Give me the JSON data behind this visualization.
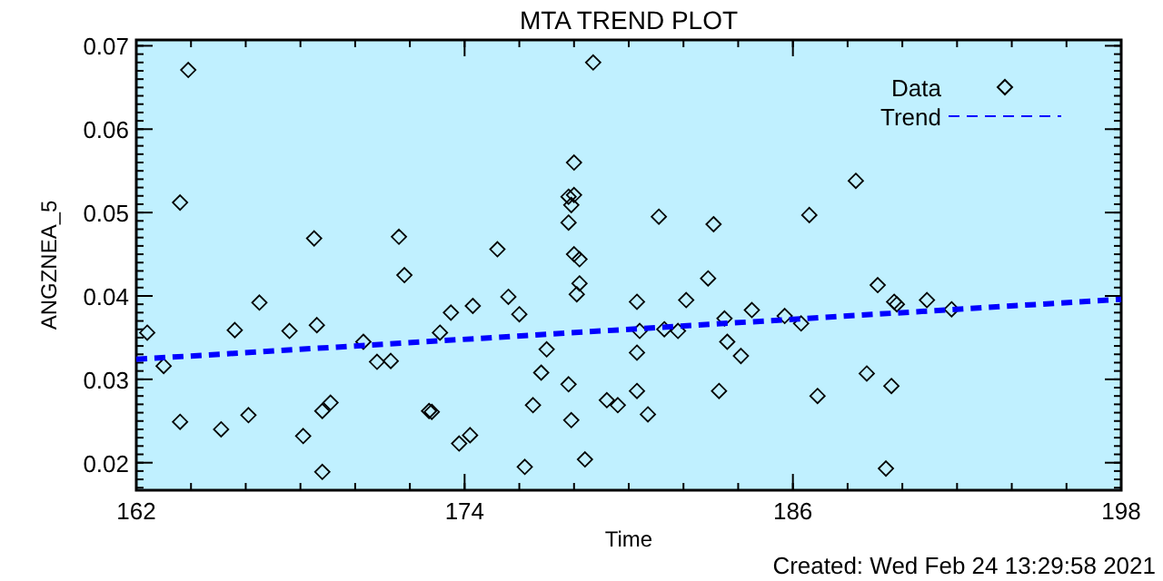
{
  "chart_data": {
    "type": "scatter",
    "title": "MTA TREND PLOT",
    "xlabel": "Time",
    "ylabel": "ANGZNEA_5",
    "annotations": [
      "Created: Wed Feb 24 13:29:58 2021"
    ],
    "xlim": [
      162,
      198
    ],
    "xticks": [
      162,
      174,
      186,
      198
    ],
    "ylim": [
      0.0167,
      0.0707
    ],
    "yticks": [
      {
        "value": 0.02,
        "label": "0.02"
      },
      {
        "value": 0.03,
        "label": "0.03"
      },
      {
        "value": 0.04,
        "label": "0.04"
      },
      {
        "value": 0.05,
        "label": "0.05"
      },
      {
        "value": 0.06,
        "label": "0.06"
      },
      {
        "value": 0.07,
        "label": "0.07"
      }
    ],
    "grid": false,
    "legend": "top right",
    "series": [
      {
        "name": "Data",
        "marker": "diamond",
        "color": "#000000",
        "x": [
          162.4,
          163.9,
          163.6,
          163.0,
          163.6,
          165.1,
          165.6,
          166.1,
          166.5,
          167.6,
          168.1,
          168.5,
          168.6,
          168.8,
          169.1,
          168.8,
          170.3,
          170.8,
          171.3,
          171.6,
          171.8,
          172.7,
          172.8,
          173.1,
          173.5,
          173.8,
          174.2,
          174.3,
          178.7,
          178.0,
          177.8,
          178.0,
          177.9,
          177.8,
          181.1,
          183.1,
          175.2,
          178.0,
          178.2,
          178.2,
          178.1,
          175.6,
          176.0,
          180.3,
          182.9,
          182.1,
          184.5,
          185.7,
          183.5,
          180.4,
          181.3,
          181.8,
          177.0,
          183.6,
          184.1,
          180.3,
          176.8,
          177.8,
          180.3,
          183.3,
          176.5,
          179.2,
          179.6,
          180.7,
          177.9,
          176.2,
          178.4,
          188.3,
          186.6,
          186.3,
          189.1,
          189.7,
          189.8,
          190.9,
          191.8,
          188.7,
          189.6,
          186.9,
          189.4
        ],
        "values": [
          0.0356,
          0.0671,
          0.0512,
          0.0316,
          0.0249,
          0.024,
          0.0359,
          0.0257,
          0.0392,
          0.0358,
          0.0232,
          0.0469,
          0.0365,
          0.0262,
          0.0272,
          0.0189,
          0.0345,
          0.0321,
          0.0322,
          0.0471,
          0.0425,
          0.0262,
          0.0261,
          0.0356,
          0.038,
          0.0223,
          0.0233,
          0.0388,
          0.068,
          0.056,
          0.0519,
          0.0521,
          0.0509,
          0.0488,
          0.0495,
          0.0486,
          0.0456,
          0.045,
          0.0444,
          0.0415,
          0.0402,
          0.0399,
          0.0378,
          0.0393,
          0.0421,
          0.0395,
          0.0383,
          0.0376,
          0.0373,
          0.0358,
          0.036,
          0.0358,
          0.0336,
          0.0345,
          0.0328,
          0.0332,
          0.0308,
          0.0294,
          0.0286,
          0.0286,
          0.0269,
          0.0275,
          0.0269,
          0.0258,
          0.0251,
          0.0195,
          0.0204,
          0.0538,
          0.0497,
          0.0367,
          0.0413,
          0.0393,
          0.039,
          0.0395,
          0.0384,
          0.0307,
          0.0292,
          0.028,
          0.0193
        ]
      },
      {
        "name": "Trend",
        "type": "line",
        "marker": "none",
        "line_style": "dashed",
        "color": "#0000ff",
        "x": [
          162,
          198
        ],
        "values": [
          0.0324,
          0.0396
        ]
      }
    ]
  }
}
